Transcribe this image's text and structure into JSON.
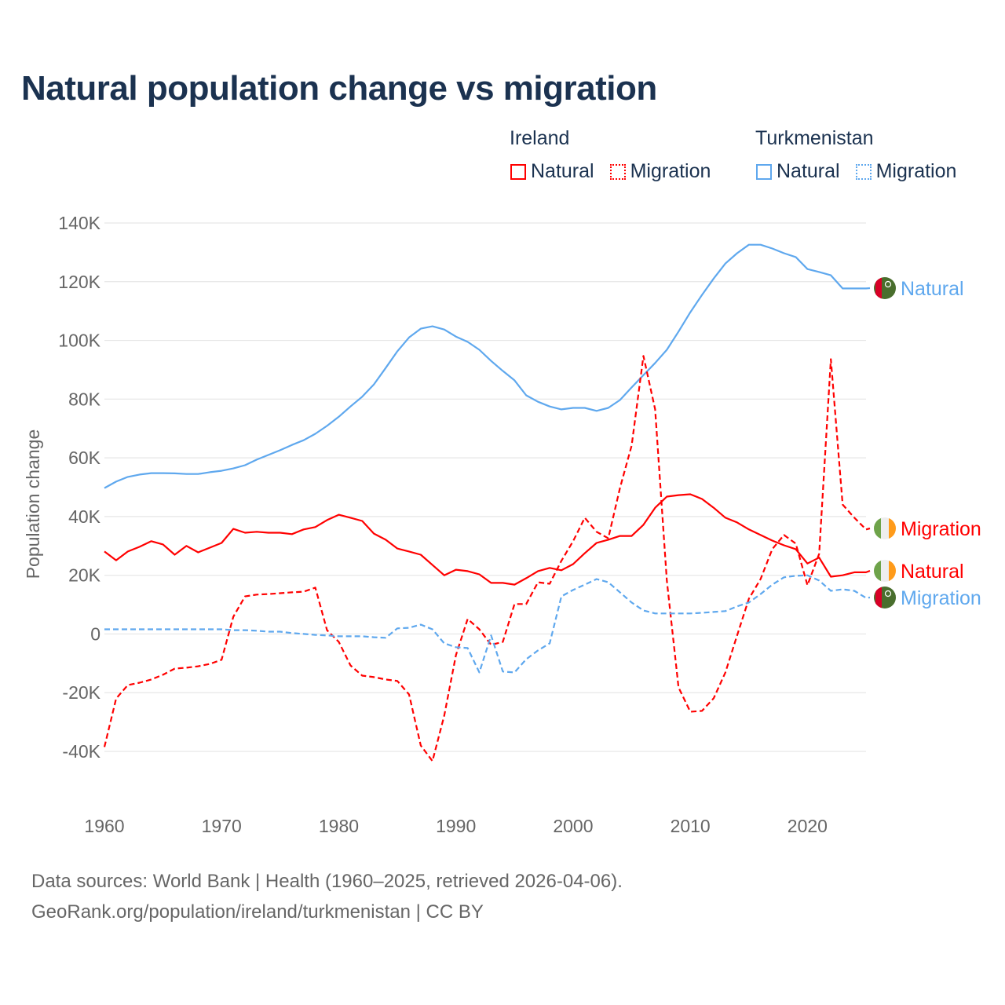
{
  "title": "Natural population change vs migration",
  "legend": {
    "groups": [
      {
        "name": "Ireland",
        "items": [
          {
            "label": "Natural",
            "style": "solid"
          },
          {
            "label": "Migration",
            "style": "dotted"
          }
        ],
        "color": "#ff0000"
      },
      {
        "name": "Turkmenistan",
        "items": [
          {
            "label": "Natural",
            "style": "solid"
          },
          {
            "label": "Migration",
            "style": "dotted"
          }
        ],
        "color": "#5fa8ee"
      }
    ]
  },
  "footer": {
    "line1": "Data sources: World Bank | Health (1960–2025, retrieved 2026-04-06).",
    "line2": "GeoRank.org/population/ireland/turkmenistan | CC BY"
  },
  "chart_data": {
    "type": "line",
    "title": "Natural population change vs migration",
    "xlabel": "",
    "ylabel": "Population change",
    "xlim": [
      1960,
      2025
    ],
    "ylim": [
      -40000,
      140000
    ],
    "x_ticks": [
      "1960",
      "1970",
      "1980",
      "1990",
      "2000",
      "2010",
      "2020"
    ],
    "y_ticks": [
      "-40K",
      "-20K",
      "0",
      "20K",
      "40K",
      "60K",
      "80K",
      "100K",
      "120K",
      "140K"
    ],
    "grid": true,
    "legend_position": "top-right",
    "x": [
      1960,
      1961,
      1962,
      1963,
      1964,
      1965,
      1966,
      1967,
      1968,
      1969,
      1970,
      1971,
      1972,
      1973,
      1974,
      1975,
      1976,
      1977,
      1978,
      1979,
      1980,
      1981,
      1982,
      1983,
      1984,
      1985,
      1986,
      1987,
      1988,
      1989,
      1990,
      1991,
      1992,
      1993,
      1994,
      1995,
      1996,
      1997,
      1998,
      1999,
      2000,
      2001,
      2002,
      2003,
      2004,
      2005,
      2006,
      2007,
      2008,
      2009,
      2010,
      2011,
      2012,
      2013,
      2014,
      2015,
      2016,
      2017,
      2018,
      2019,
      2020,
      2021,
      2022,
      2023,
      2024,
      2025
    ],
    "series": [
      {
        "name": "Turkmenistan Natural",
        "end_label": "Natural",
        "country": "Turkmenistan",
        "color": "#5fa8ee",
        "dash": false,
        "values": [
          49.7,
          51.9,
          53.5,
          54.3,
          54.8,
          54.8,
          54.7,
          54.5,
          54.5,
          55.1,
          55.6,
          56.4,
          57.5,
          59.4,
          61,
          62.6,
          64.4,
          66,
          68.2,
          70.9,
          74,
          77.5,
          80.8,
          85,
          90.6,
          96.3,
          101,
          104,
          104.8,
          103.7,
          101.3,
          99.5,
          96.8,
          93,
          89.6,
          86.4,
          81.3,
          79.1,
          77.5,
          76.5,
          77,
          77,
          76,
          77,
          79.7,
          84,
          88.2,
          92.3,
          96.8,
          103,
          109.6,
          115.5,
          121.1,
          126.2,
          129.7,
          132.6,
          132.6,
          131.3,
          129.7,
          128.4,
          124.3,
          123.3,
          122.2,
          117.7,
          117.7,
          117.7
        ]
      },
      {
        "name": "Ireland Migration",
        "end_label": "Migration",
        "country": "Ireland",
        "color": "#ff0000",
        "dash": true,
        "values": [
          -38.5,
          -22,
          -17.4,
          -16.6,
          -15.5,
          -13.9,
          -11.8,
          -11.5,
          -11,
          -10.2,
          -8.8,
          5.9,
          12.8,
          13.4,
          13.6,
          13.9,
          14.2,
          14.4,
          15.8,
          1.3,
          -2.7,
          -10.7,
          -14.2,
          -14.7,
          -15.5,
          -16,
          -20.6,
          -38,
          -43.3,
          -27.8,
          -7.2,
          5.1,
          1.6,
          -3.7,
          -2.7,
          10.2,
          10.2,
          17.6,
          17.1,
          24.9,
          31.6,
          39.6,
          34.8,
          32.6,
          49.7,
          64.2,
          94.7,
          76.5,
          18.2,
          -18.2,
          -26.5,
          -26.2,
          -21.9,
          -13.1,
          -0.5,
          12,
          18.7,
          28.9,
          33.7,
          30.8,
          16.6,
          27.3,
          93.6,
          44.1,
          39.6,
          35.6
        ]
      },
      {
        "name": "Ireland Natural",
        "end_label": "Natural",
        "country": "Ireland",
        "color": "#ff0000",
        "dash": false,
        "values": [
          28.1,
          25.1,
          28.1,
          29.7,
          31.6,
          30.5,
          27,
          30,
          27.8,
          29.4,
          31,
          35.8,
          34.5,
          34.8,
          34.5,
          34.5,
          34,
          35.6,
          36.4,
          38.8,
          40.6,
          39.6,
          38.5,
          34.2,
          32.1,
          29.1,
          28.1,
          27,
          23.5,
          20,
          21.9,
          21.4,
          20.3,
          17.4,
          17.4,
          16.8,
          19,
          21.4,
          22.5,
          21.7,
          23.8,
          27.5,
          31,
          32.1,
          33.4,
          33.4,
          37.2,
          43,
          46.8,
          47.3,
          47.6,
          46,
          43,
          39.6,
          38,
          35.6,
          33.7,
          31.8,
          30.2,
          28.9,
          24,
          26,
          19.5,
          20,
          21,
          21
        ]
      },
      {
        "name": "Turkmenistan Migration",
        "end_label": "Migration",
        "country": "Turkmenistan",
        "color": "#5fa8ee",
        "dash": true,
        "values": [
          1.6,
          1.6,
          1.6,
          1.6,
          1.6,
          1.6,
          1.6,
          1.6,
          1.6,
          1.6,
          1.6,
          1.3,
          1.3,
          1.1,
          0.8,
          0.8,
          0.3,
          0,
          -0.3,
          -0.5,
          -0.8,
          -0.8,
          -0.8,
          -1.1,
          -1.3,
          1.9,
          2.1,
          3.2,
          1.6,
          -3.2,
          -4.5,
          -4.8,
          -13.1,
          -0.5,
          -12.8,
          -13.1,
          -8.6,
          -5.6,
          -3.2,
          12.8,
          15,
          16.8,
          18.7,
          17.6,
          14.2,
          10.7,
          8,
          7,
          7,
          7,
          7,
          7.2,
          7.5,
          7.8,
          9.4,
          10.7,
          13.6,
          16.8,
          19.3,
          19.8,
          20,
          18.2,
          14.7,
          15.2,
          14.7,
          12.3
        ]
      }
    ],
    "value_units": "thousands"
  }
}
